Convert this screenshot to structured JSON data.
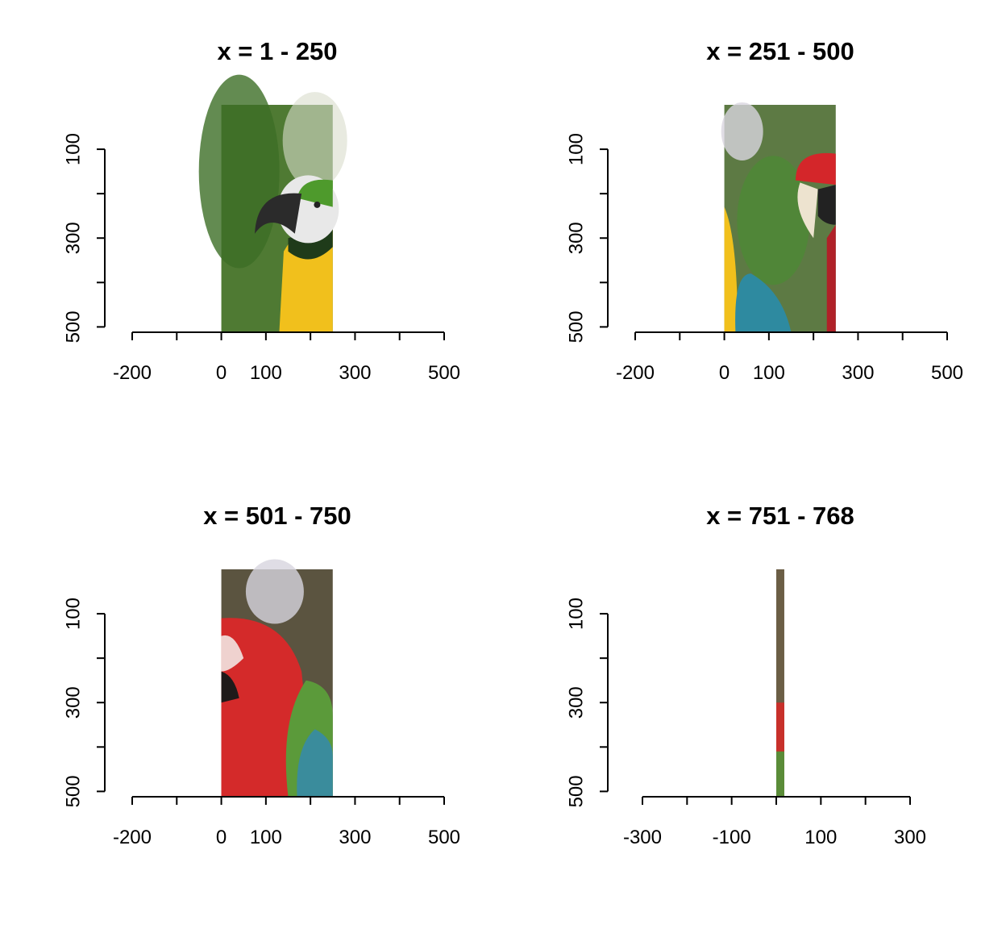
{
  "chart_data": [
    {
      "type": "image",
      "title": "x = 1 - 250",
      "xlim": [
        -200,
        500
      ],
      "ylim": [
        500,
        0
      ],
      "xticks": [
        -200,
        -100,
        0,
        100,
        200,
        300,
        400,
        500
      ],
      "xtick_labels": [
        "-200",
        "",
        "0",
        "100",
        "",
        "300",
        "",
        "500"
      ],
      "yticks": [
        100,
        200,
        300,
        400,
        500
      ],
      "ytick_labels": [
        "100",
        "",
        "300",
        "",
        "500"
      ],
      "image_x_range": [
        0,
        250
      ],
      "image_y_range": [
        0,
        512
      ],
      "image_description": "left portion of a blue-and-yellow macaw's head and chest against green foliage",
      "palette": {
        "background": "#4f7a33",
        "accent1": "#f1c01c",
        "accent2": "#e8e8e8",
        "accent3": "#2b2b2b"
      }
    },
    {
      "type": "image",
      "title": "x = 251 - 500",
      "xlim": [
        -200,
        500
      ],
      "ylim": [
        500,
        0
      ],
      "xticks": [
        -200,
        -100,
        0,
        100,
        200,
        300,
        400,
        500
      ],
      "xtick_labels": [
        "-200",
        "",
        "0",
        "100",
        "",
        "300",
        "",
        "500"
      ],
      "yticks": [
        100,
        200,
        300,
        400,
        500
      ],
      "ytick_labels": [
        "100",
        "",
        "300",
        "",
        "500"
      ],
      "image_x_range": [
        0,
        250
      ],
      "image_y_range": [
        0,
        512
      ],
      "image_description": "middle strip: macaw wing on left, green foliage, scarlet macaw head entering at right",
      "palette": {
        "background": "#5d7a44",
        "accent1": "#2e8aa0",
        "accent2": "#d4262a",
        "accent3": "#f1c01c"
      }
    },
    {
      "type": "image",
      "title": "x = 501 - 750",
      "xlim": [
        -200,
        500
      ],
      "ylim": [
        500,
        0
      ],
      "xticks": [
        -200,
        -100,
        0,
        100,
        200,
        300,
        400,
        500
      ],
      "xtick_labels": [
        "-200",
        "",
        "0",
        "100",
        "",
        "300",
        "",
        "500"
      ],
      "yticks": [
        100,
        200,
        300,
        400,
        500
      ],
      "ytick_labels": [
        "100",
        "",
        "300",
        "",
        "500"
      ],
      "image_x_range": [
        0,
        250
      ],
      "image_y_range": [
        0,
        512
      ],
      "image_description": "red macaw body with green and blue wing feathers",
      "palette": {
        "background": "#5b5440",
        "accent1": "#d42a2a",
        "accent2": "#3a8c9c",
        "accent3": "#5b9a3a"
      }
    },
    {
      "type": "image",
      "title": "x = 751 - 768",
      "xlim": [
        -300,
        300
      ],
      "ylim": [
        500,
        0
      ],
      "xticks": [
        -300,
        -200,
        -100,
        0,
        100,
        200,
        300
      ],
      "xtick_labels": [
        "-300",
        "",
        "-100",
        "",
        "100",
        "",
        "300"
      ],
      "yticks": [
        100,
        200,
        300,
        400,
        500
      ],
      "ytick_labels": [
        "100",
        "",
        "300",
        "",
        "500"
      ],
      "image_x_range": [
        0,
        18
      ],
      "image_y_range": [
        0,
        512
      ],
      "image_description": "narrow right-edge strip, mostly brown background with red and green near bottom",
      "palette": {
        "background": "#6b5e45",
        "accent1": "#c8302a",
        "accent2": "#5a8c38",
        "accent3": "#6b5e45"
      }
    }
  ]
}
